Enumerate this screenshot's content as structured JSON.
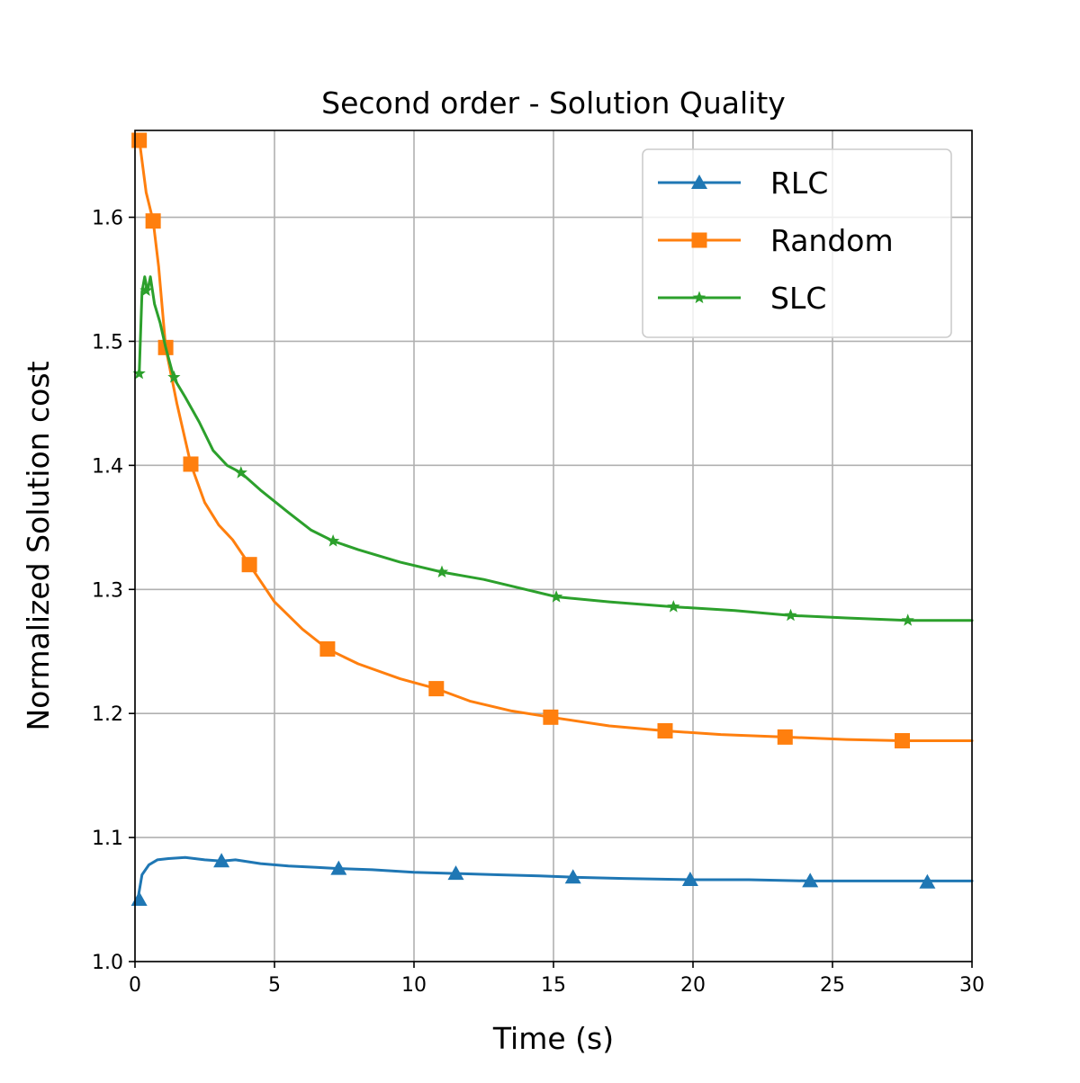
{
  "chart_data": {
    "type": "line",
    "title": "Second order - Solution Quality",
    "xlabel": "Time (s)",
    "ylabel": "Normalized Solution cost",
    "xlim": [
      0,
      30
    ],
    "ylim": [
      1.0,
      1.67
    ],
    "x_ticks": [
      "0",
      "5",
      "10",
      "15",
      "20",
      "25",
      "30"
    ],
    "y_ticks": [
      "1.0",
      "1.1",
      "1.2",
      "1.3",
      "1.4",
      "1.5",
      "1.6"
    ],
    "grid": true,
    "legend_position": "top-right",
    "series": [
      {
        "name": "RLC",
        "color": "#1f77b4",
        "marker": "triangle",
        "x": [
          0.1,
          0.25,
          0.5,
          0.8,
          1.2,
          1.8,
          2.5,
          3.1,
          3.6,
          4.5,
          5.5,
          6.5,
          7.3,
          8.5,
          10.0,
          11.5,
          13.0,
          14.5,
          15.7,
          17.5,
          19.9,
          22.0,
          24.2,
          26.0,
          28.4,
          30.0
        ],
        "y": [
          1.05,
          1.07,
          1.078,
          1.082,
          1.083,
          1.084,
          1.082,
          1.081,
          1.082,
          1.079,
          1.077,
          1.076,
          1.075,
          1.074,
          1.072,
          1.071,
          1.07,
          1.069,
          1.068,
          1.067,
          1.066,
          1.066,
          1.065,
          1.065,
          1.065,
          1.065
        ],
        "marker_x": [
          0.15,
          3.1,
          7.3,
          11.5,
          15.7,
          19.9,
          24.2,
          28.4
        ],
        "marker_y": [
          1.05,
          1.081,
          1.075,
          1.071,
          1.068,
          1.066,
          1.065,
          1.064
        ]
      },
      {
        "name": "Random",
        "color": "#ff7f0e",
        "marker": "square",
        "x": [
          0.15,
          0.4,
          0.65,
          0.85,
          1.1,
          1.5,
          2.0,
          2.5,
          3.0,
          3.5,
          4.1,
          5.0,
          6.0,
          6.9,
          8.0,
          9.5,
          10.8,
          12.0,
          13.5,
          14.9,
          17.0,
          19.0,
          21.0,
          23.3,
          25.5,
          27.5,
          30.0
        ],
        "y": [
          1.663,
          1.62,
          1.597,
          1.56,
          1.495,
          1.45,
          1.401,
          1.37,
          1.352,
          1.34,
          1.32,
          1.29,
          1.268,
          1.252,
          1.24,
          1.228,
          1.22,
          1.21,
          1.202,
          1.197,
          1.19,
          1.186,
          1.183,
          1.181,
          1.179,
          1.178,
          1.178
        ],
        "marker_x": [
          0.15,
          0.65,
          1.1,
          2.0,
          4.1,
          6.9,
          10.8,
          14.9,
          19.0,
          23.3,
          27.5
        ],
        "marker_y": [
          1.662,
          1.597,
          1.495,
          1.401,
          1.32,
          1.252,
          1.22,
          1.197,
          1.186,
          1.181,
          1.178
        ]
      },
      {
        "name": "SLC",
        "color": "#2ca02c",
        "marker": "star",
        "x": [
          0.15,
          0.25,
          0.35,
          0.45,
          0.55,
          0.7,
          0.9,
          1.1,
          1.4,
          1.8,
          2.3,
          2.8,
          3.3,
          3.8,
          4.5,
          5.5,
          6.3,
          7.1,
          8.0,
          9.5,
          11.0,
          12.5,
          14.0,
          15.1,
          17.0,
          19.3,
          21.5,
          23.5,
          25.5,
          27.7,
          30.0
        ],
        "y": [
          1.474,
          1.54,
          1.552,
          1.54,
          1.552,
          1.53,
          1.515,
          1.495,
          1.47,
          1.455,
          1.435,
          1.412,
          1.4,
          1.394,
          1.38,
          1.362,
          1.348,
          1.339,
          1.332,
          1.322,
          1.314,
          1.308,
          1.3,
          1.294,
          1.29,
          1.286,
          1.283,
          1.279,
          1.277,
          1.275,
          1.275
        ],
        "marker_x": [
          0.15,
          0.4,
          1.4,
          3.8,
          7.1,
          11.0,
          15.1,
          19.3,
          23.5,
          27.7
        ],
        "marker_y": [
          1.474,
          1.541,
          1.471,
          1.394,
          1.339,
          1.314,
          1.294,
          1.286,
          1.279,
          1.275
        ]
      }
    ]
  }
}
